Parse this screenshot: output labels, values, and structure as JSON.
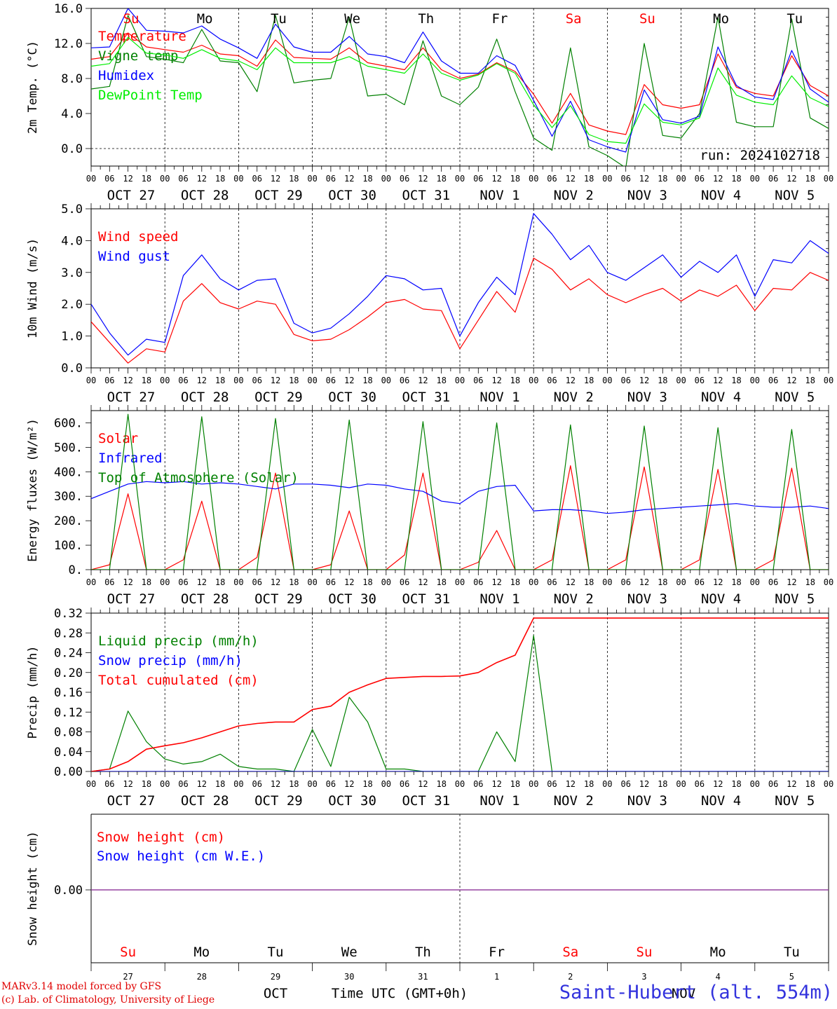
{
  "chart_data": [
    {
      "type": "line",
      "ylabel": "2m Temp. (°C)",
      "ylim": [
        -2.0,
        16.0
      ],
      "yticks": [
        0.0,
        4.0,
        8.0,
        12.0,
        16.0
      ],
      "ytick_labels": [
        "0.0",
        "4.0",
        "8.0",
        "12.0",
        "16.0"
      ],
      "annotation": "run: 2024102718",
      "day_names": [
        {
          "text": "Su",
          "weekend": true
        },
        {
          "text": "Mo",
          "weekend": false
        },
        {
          "text": "Tu",
          "weekend": false
        },
        {
          "text": "We",
          "weekend": false
        },
        {
          "text": "Th",
          "weekend": false
        },
        {
          "text": "Fr",
          "weekend": false
        },
        {
          "text": "Sa",
          "weekend": true
        },
        {
          "text": "Su",
          "weekend": true
        },
        {
          "text": "Mo",
          "weekend": false
        },
        {
          "text": "Tu",
          "weekend": false
        }
      ],
      "series_x_hours": [
        0,
        6,
        12,
        18,
        24,
        30,
        36,
        42,
        48,
        54,
        60,
        66,
        72,
        78,
        84,
        90,
        96,
        102,
        108,
        114,
        120,
        126,
        132,
        138,
        144,
        150,
        156,
        162,
        168,
        174,
        180,
        186,
        192,
        198,
        204,
        210,
        216,
        222,
        228,
        234,
        240
      ],
      "series": [
        {
          "name": "Temperature",
          "color": "#ff0000",
          "values": [
            10.2,
            10.5,
            13.2,
            11.6,
            11.3,
            11.0,
            11.8,
            10.8,
            10.6,
            9.4,
            12.4,
            10.4,
            10.3,
            10.2,
            11.5,
            9.8,
            9.4,
            9.0,
            11.5,
            9.0,
            8.0,
            8.5,
            9.8,
            8.8,
            6.2,
            2.9,
            6.3,
            2.7,
            2.0,
            1.6,
            7.3,
            5.0,
            4.6,
            5.0,
            10.8,
            7.0,
            6.3,
            6.0,
            10.6,
            7.2,
            6.0
          ]
        },
        {
          "name": "Vigne temp",
          "color": "#008000",
          "values": [
            6.8,
            7.1,
            15.2,
            10.5,
            10.2,
            9.8,
            13.6,
            10.0,
            9.8,
            6.5,
            15.2,
            7.5,
            7.8,
            8.0,
            15.0,
            6.0,
            6.2,
            5.0,
            12.3,
            6.0,
            5.0,
            7.0,
            12.5,
            6.5,
            1.2,
            -0.2,
            11.5,
            0.2,
            -0.8,
            -2.2,
            12.0,
            1.5,
            1.2,
            4.0,
            15.0,
            3.0,
            2.5,
            2.5,
            14.8,
            3.5,
            2.3
          ]
        },
        {
          "name": "Humidex",
          "color": "#0000ff",
          "values": [
            11.5,
            11.6,
            16.0,
            13.5,
            13.4,
            13.2,
            14.0,
            12.5,
            11.5,
            10.3,
            14.2,
            11.6,
            11.0,
            11.0,
            12.8,
            10.8,
            10.5,
            9.8,
            13.3,
            10.0,
            8.6,
            8.6,
            10.6,
            9.5,
            5.5,
            1.4,
            5.4,
            1.0,
            0.2,
            -0.4,
            6.7,
            3.3,
            2.9,
            3.7,
            11.6,
            7.2,
            5.9,
            5.6,
            11.2,
            6.8,
            5.3
          ]
        },
        {
          "name": "DewPoint Temp",
          "color": "#00ee00",
          "values": [
            9.4,
            9.7,
            12.7,
            10.9,
            10.7,
            10.3,
            11.3,
            10.3,
            10.0,
            9.0,
            11.5,
            9.8,
            9.8,
            9.8,
            10.5,
            9.4,
            9.0,
            8.6,
            10.8,
            8.6,
            7.8,
            8.4,
            9.7,
            8.6,
            5.0,
            2.4,
            4.9,
            1.6,
            0.8,
            0.6,
            5.1,
            3.0,
            2.7,
            3.5,
            9.2,
            6.1,
            5.3,
            5.0,
            8.3,
            5.8,
            4.8
          ]
        }
      ]
    },
    {
      "type": "line",
      "ylabel": "10m Wind (m/s)",
      "ylim": [
        0.0,
        5.0
      ],
      "yticks": [
        0.0,
        1.0,
        2.0,
        3.0,
        4.0,
        5.0
      ],
      "ytick_labels": [
        "0.0",
        "1.0",
        "2.0",
        "3.0",
        "4.0",
        "5.0"
      ],
      "series_x_hours": [
        0,
        6,
        12,
        18,
        24,
        30,
        36,
        42,
        48,
        54,
        60,
        66,
        72,
        78,
        84,
        90,
        96,
        102,
        108,
        114,
        120,
        126,
        132,
        138,
        144,
        150,
        156,
        162,
        168,
        174,
        180,
        186,
        192,
        198,
        204,
        210,
        216,
        222,
        228,
        234,
        240
      ],
      "series": [
        {
          "name": "Wind speed",
          "color": "#ff0000",
          "values": [
            1.45,
            0.8,
            0.15,
            0.6,
            0.5,
            2.1,
            2.65,
            2.05,
            1.85,
            2.1,
            2.0,
            1.05,
            0.85,
            0.9,
            1.2,
            1.6,
            2.05,
            2.15,
            1.85,
            1.8,
            0.6,
            1.5,
            2.4,
            1.75,
            3.45,
            3.1,
            2.45,
            2.8,
            2.3,
            2.05,
            2.3,
            2.5,
            2.1,
            2.45,
            2.25,
            2.6,
            1.8,
            2.5,
            2.45,
            3.0,
            2.75
          ]
        },
        {
          "name": "Wind gust",
          "color": "#0000ff",
          "values": [
            2.0,
            1.1,
            0.4,
            0.9,
            0.8,
            2.9,
            3.55,
            2.8,
            2.45,
            2.75,
            2.8,
            1.4,
            1.1,
            1.25,
            1.7,
            2.25,
            2.9,
            2.8,
            2.45,
            2.5,
            1.0,
            2.05,
            2.85,
            2.3,
            4.85,
            4.2,
            3.4,
            3.85,
            3.0,
            2.75,
            3.15,
            3.55,
            2.85,
            3.35,
            3.0,
            3.55,
            2.25,
            3.4,
            3.3,
            4.0,
            3.6
          ]
        }
      ]
    },
    {
      "type": "line",
      "ylabel": "Energy fluxes (W/m²)",
      "ylim": [
        0,
        650
      ],
      "yticks": [
        0,
        100,
        200,
        300,
        400,
        500,
        600
      ],
      "ytick_labels": [
        "0.",
        "100.",
        "200.",
        "300.",
        "400.",
        "500.",
        "600."
      ],
      "series_x_hours": [
        0,
        6,
        12,
        18,
        24,
        30,
        36,
        42,
        48,
        54,
        60,
        66,
        72,
        78,
        84,
        90,
        96,
        102,
        108,
        114,
        120,
        126,
        132,
        138,
        144,
        150,
        156,
        162,
        168,
        174,
        180,
        186,
        192,
        198,
        204,
        210,
        216,
        222,
        228,
        234,
        240
      ],
      "series": [
        {
          "name": "Solar",
          "color": "#ff0000",
          "values": [
            0,
            20,
            310,
            0,
            0,
            40,
            280,
            0,
            0,
            50,
            395,
            0,
            0,
            20,
            240,
            0,
            0,
            60,
            395,
            0,
            0,
            30,
            160,
            0,
            0,
            40,
            425,
            0,
            0,
            40,
            420,
            0,
            0,
            40,
            410,
            0,
            0,
            40,
            415,
            0,
            0
          ]
        },
        {
          "name": "Infrared",
          "color": "#0000ff",
          "values": [
            290,
            320,
            350,
            360,
            355,
            360,
            350,
            355,
            350,
            340,
            330,
            350,
            350,
            345,
            335,
            350,
            345,
            330,
            320,
            280,
            270,
            320,
            340,
            345,
            240,
            245,
            245,
            240,
            230,
            235,
            245,
            250,
            255,
            260,
            265,
            270,
            260,
            255,
            255,
            260,
            250
          ]
        },
        {
          "name": "Top of Atmosphere (Solar)",
          "color": "#008000",
          "values": [
            0,
            0,
            635,
            0,
            0,
            0,
            625,
            0,
            0,
            0,
            618,
            0,
            0,
            0,
            612,
            0,
            0,
            0,
            605,
            0,
            0,
            0,
            600,
            0,
            0,
            0,
            592,
            0,
            0,
            0,
            587,
            0,
            0,
            0,
            580,
            0,
            0,
            0,
            573,
            0,
            0
          ]
        }
      ]
    },
    {
      "type": "line",
      "ylabel": "Precip (mm/h)",
      "ylim": [
        0.0,
        0.32
      ],
      "yticks": [
        0.0,
        0.04,
        0.08,
        0.12,
        0.16,
        0.2,
        0.24,
        0.28,
        0.32
      ],
      "ytick_labels": [
        "0.00",
        "0.04",
        "0.08",
        "0.12",
        "0.16",
        "0.20",
        "0.24",
        "0.28",
        "0.32"
      ],
      "series_x_hours": [
        0,
        6,
        12,
        18,
        24,
        30,
        36,
        42,
        48,
        54,
        60,
        66,
        72,
        78,
        84,
        90,
        96,
        102,
        108,
        114,
        120,
        126,
        132,
        138,
        144,
        150,
        156,
        162,
        168,
        174,
        180,
        186,
        192,
        198,
        204,
        210,
        216,
        222,
        228,
        234,
        240
      ],
      "series": [
        {
          "name": "Liquid precip (mm/h)",
          "color": "#008000",
          "values": [
            0.0,
            0.005,
            0.122,
            0.06,
            0.025,
            0.015,
            0.02,
            0.035,
            0.01,
            0.005,
            0.005,
            0.0,
            0.085,
            0.01,
            0.15,
            0.1,
            0.005,
            0.005,
            0.0,
            0.0,
            0.0,
            0.0,
            0.08,
            0.02,
            0.275,
            0.0,
            0.0,
            0.0,
            0.0,
            0.0,
            0.0,
            0.0,
            0.0,
            0.0,
            0.0,
            0.0,
            0.0,
            0.0,
            0.0,
            0.0,
            0.0
          ]
        },
        {
          "name": "Snow precip (mm/h)",
          "color": "#0000ff",
          "values": [
            0,
            0,
            0,
            0,
            0,
            0,
            0,
            0,
            0,
            0,
            0,
            0,
            0,
            0,
            0,
            0,
            0,
            0,
            0,
            0,
            0,
            0,
            0,
            0,
            0,
            0,
            0,
            0,
            0,
            0,
            0,
            0,
            0,
            0,
            0,
            0,
            0,
            0,
            0,
            0,
            0
          ]
        },
        {
          "name": "Total cumulated (cm)",
          "color": "#ff0000",
          "values": [
            0.0,
            0.005,
            0.02,
            0.045,
            0.052,
            0.058,
            0.068,
            0.08,
            0.092,
            0.097,
            0.1,
            0.1,
            0.125,
            0.132,
            0.16,
            0.175,
            0.188,
            0.19,
            0.192,
            0.192,
            0.193,
            0.2,
            0.22,
            0.235,
            0.31,
            0.31,
            0.31,
            0.31,
            0.31,
            0.31,
            0.31,
            0.31,
            0.31,
            0.31,
            0.31,
            0.31,
            0.31,
            0.31,
            0.31,
            0.31,
            0.31
          ]
        }
      ]
    },
    {
      "type": "line",
      "ylabel": "Snow height (cm)",
      "ytick_labels": [
        "0.00"
      ],
      "series": [
        {
          "name": "Snow height (cm)",
          "color": "#ff0000",
          "values": [
            0,
            0
          ]
        },
        {
          "name": "Snow height (cm W.E.)",
          "color": "#0000ff",
          "values": [
            0,
            0
          ]
        }
      ],
      "day_names": [
        {
          "text": "Su",
          "weekend": true
        },
        {
          "text": "Mo",
          "weekend": false
        },
        {
          "text": "Tu",
          "weekend": false
        },
        {
          "text": "We",
          "weekend": false
        },
        {
          "text": "Th",
          "weekend": false
        },
        {
          "text": "Fr",
          "weekend": false
        },
        {
          "text": "Sa",
          "weekend": true
        },
        {
          "text": "Su",
          "weekend": true
        },
        {
          "text": "Mo",
          "weekend": false
        },
        {
          "text": "Tu",
          "weekend": false
        }
      ],
      "day_numbers": [
        "27",
        "28",
        "29",
        "30",
        "31",
        "1",
        "2",
        "3",
        "4",
        "5"
      ],
      "month_labels": [
        "OCT",
        "NOV"
      ],
      "xlabel": "Time UTC (GMT+0h)"
    }
  ],
  "x_axis": {
    "hour_labels": [
      "00",
      "06",
      "12",
      "18"
    ],
    "final_hour_label": "00",
    "date_labels": [
      "OCT 27",
      "OCT 28",
      "OCT 29",
      "OCT 30",
      "OCT 31",
      "NOV  1",
      "NOV  2",
      "NOV  3",
      "NOV  4",
      "NOV  5"
    ]
  },
  "footer": {
    "model_credit": "MARv3.14 model forced by GFS",
    "lab_credit": "(c) Lab. of Climatology, University of Liege",
    "station": "Saint-Hubert (alt. 554m)"
  },
  "colors": {
    "weekend_label": "#ff0000",
    "station_label": "#3333dd",
    "credit_text": "#e00000"
  }
}
